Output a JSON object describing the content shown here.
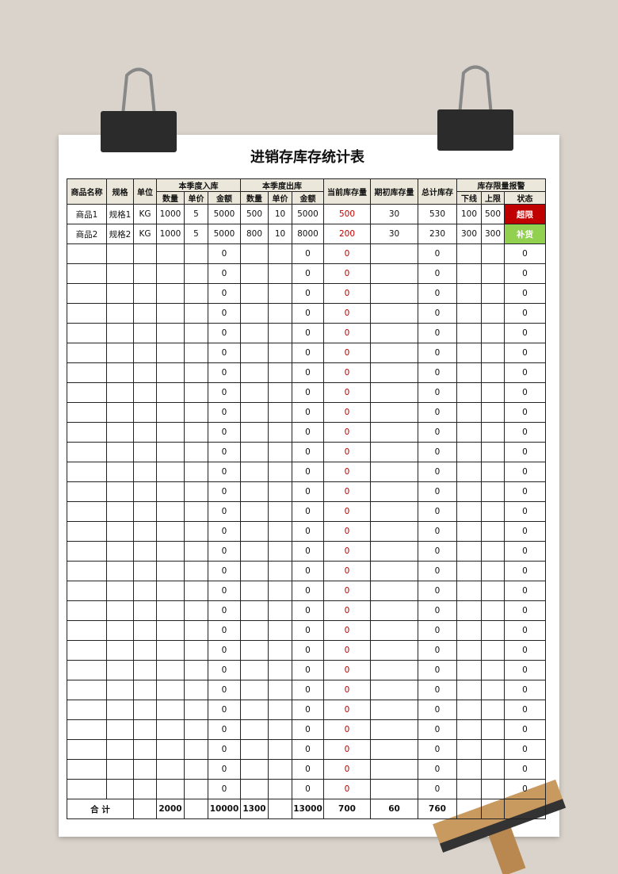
{
  "title": "进销存库存统计表",
  "table": {
    "header_top": [
      "商品名称",
      "规格",
      "单位",
      "本季度入库",
      "本季度出库",
      "当前库存量",
      "期初库存量",
      "总计库存",
      "库存限量报警"
    ],
    "header_sub": [
      "数量",
      "单价",
      "金额",
      "数量",
      "单价",
      "金额",
      "下线",
      "上限",
      "状态"
    ],
    "rows": [
      [
        "商品1",
        "规格1",
        "KG",
        1000,
        5,
        5000,
        500,
        10,
        5000,
        500,
        30,
        530,
        100,
        500,
        "超限"
      ],
      [
        "商品2",
        "规格2",
        "KG",
        1000,
        5,
        5000,
        800,
        10,
        8000,
        200,
        30,
        230,
        300,
        300,
        "补货"
      ],
      [
        null,
        null,
        null,
        null,
        null,
        0,
        null,
        null,
        0,
        0,
        null,
        0,
        null,
        null,
        0
      ],
      [
        null,
        null,
        null,
        null,
        null,
        0,
        null,
        null,
        0,
        0,
        null,
        0,
        null,
        null,
        0
      ],
      [
        null,
        null,
        null,
        null,
        null,
        0,
        null,
        null,
        0,
        0,
        null,
        0,
        null,
        null,
        0
      ],
      [
        null,
        null,
        null,
        null,
        null,
        0,
        null,
        null,
        0,
        0,
        null,
        0,
        null,
        null,
        0
      ],
      [
        null,
        null,
        null,
        null,
        null,
        0,
        null,
        null,
        0,
        0,
        null,
        0,
        null,
        null,
        0
      ],
      [
        null,
        null,
        null,
        null,
        null,
        0,
        null,
        null,
        0,
        0,
        null,
        0,
        null,
        null,
        0
      ],
      [
        null,
        null,
        null,
        null,
        null,
        0,
        null,
        null,
        0,
        0,
        null,
        0,
        null,
        null,
        0
      ],
      [
        null,
        null,
        null,
        null,
        null,
        0,
        null,
        null,
        0,
        0,
        null,
        0,
        null,
        null,
        0
      ],
      [
        null,
        null,
        null,
        null,
        null,
        0,
        null,
        null,
        0,
        0,
        null,
        0,
        null,
        null,
        0
      ],
      [
        null,
        null,
        null,
        null,
        null,
        0,
        null,
        null,
        0,
        0,
        null,
        0,
        null,
        null,
        0
      ],
      [
        null,
        null,
        null,
        null,
        null,
        0,
        null,
        null,
        0,
        0,
        null,
        0,
        null,
        null,
        0
      ],
      [
        null,
        null,
        null,
        null,
        null,
        0,
        null,
        null,
        0,
        0,
        null,
        0,
        null,
        null,
        0
      ],
      [
        null,
        null,
        null,
        null,
        null,
        0,
        null,
        null,
        0,
        0,
        null,
        0,
        null,
        null,
        0
      ],
      [
        null,
        null,
        null,
        null,
        null,
        0,
        null,
        null,
        0,
        0,
        null,
        0,
        null,
        null,
        0
      ],
      [
        null,
        null,
        null,
        null,
        null,
        0,
        null,
        null,
        0,
        0,
        null,
        0,
        null,
        null,
        0
      ],
      [
        null,
        null,
        null,
        null,
        null,
        0,
        null,
        null,
        0,
        0,
        null,
        0,
        null,
        null,
        0
      ],
      [
        null,
        null,
        null,
        null,
        null,
        0,
        null,
        null,
        0,
        0,
        null,
        0,
        null,
        null,
        0
      ],
      [
        null,
        null,
        null,
        null,
        null,
        0,
        null,
        null,
        0,
        0,
        null,
        0,
        null,
        null,
        0
      ],
      [
        null,
        null,
        null,
        null,
        null,
        0,
        null,
        null,
        0,
        0,
        null,
        0,
        null,
        null,
        0
      ],
      [
        null,
        null,
        null,
        null,
        null,
        0,
        null,
        null,
        0,
        0,
        null,
        0,
        null,
        null,
        0
      ],
      [
        null,
        null,
        null,
        null,
        null,
        0,
        null,
        null,
        0,
        0,
        null,
        0,
        null,
        null,
        0
      ],
      [
        null,
        null,
        null,
        null,
        null,
        0,
        null,
        null,
        0,
        0,
        null,
        0,
        null,
        null,
        0
      ],
      [
        null,
        null,
        null,
        null,
        null,
        0,
        null,
        null,
        0,
        0,
        null,
        0,
        null,
        null,
        0
      ],
      [
        null,
        null,
        null,
        null,
        null,
        0,
        null,
        null,
        0,
        0,
        null,
        0,
        null,
        null,
        0
      ],
      [
        null,
        null,
        null,
        null,
        null,
        0,
        null,
        null,
        0,
        0,
        null,
        0,
        null,
        null,
        0
      ],
      [
        null,
        null,
        null,
        null,
        null,
        0,
        null,
        null,
        0,
        0,
        null,
        0,
        null,
        null,
        0
      ],
      [
        null,
        null,
        null,
        null,
        null,
        0,
        null,
        null,
        0,
        0,
        null,
        0,
        null,
        null,
        0
      ],
      [
        null,
        null,
        null,
        null,
        null,
        0,
        null,
        null,
        0,
        0,
        null,
        0,
        null,
        null,
        0
      ]
    ],
    "total": [
      "合 计",
      null,
      2000,
      null,
      10000,
      1300,
      null,
      13000,
      700,
      60,
      760,
      null,
      null,
      null
    ]
  }
}
